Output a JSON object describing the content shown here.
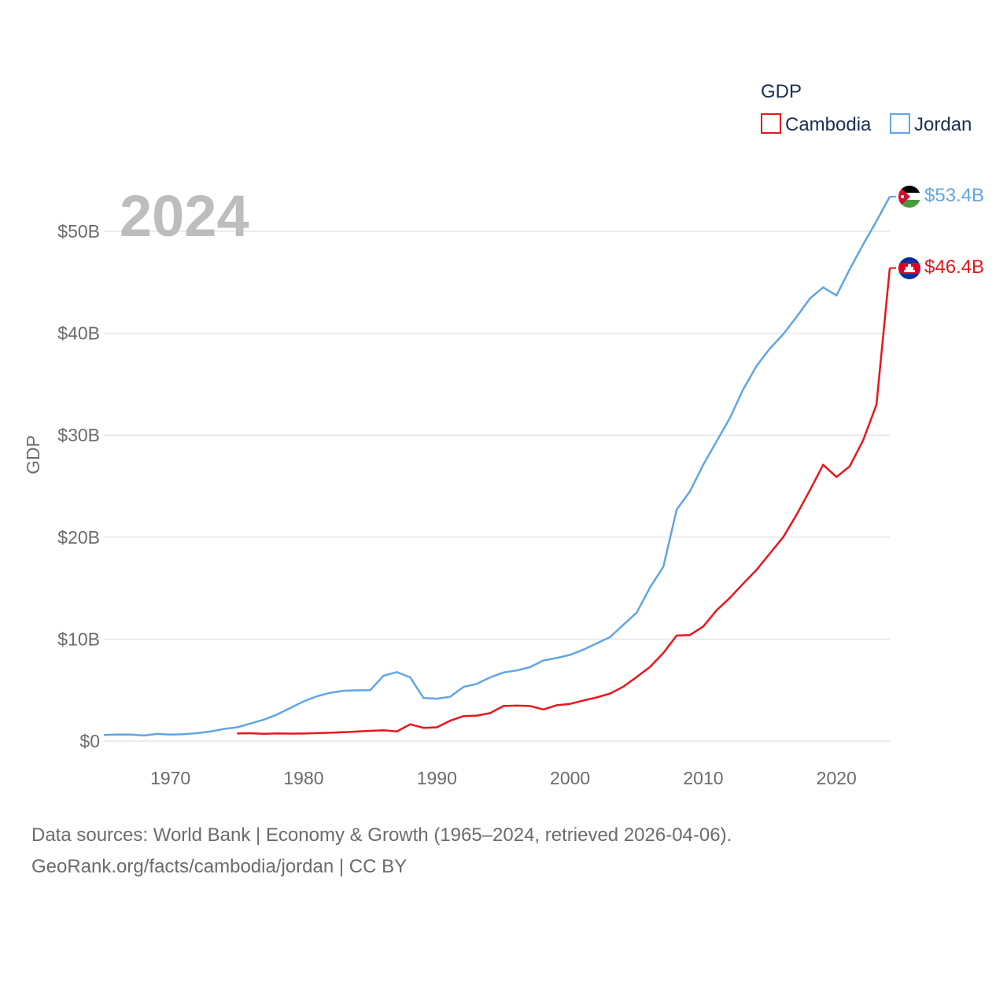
{
  "chart_data": {
    "type": "line",
    "year_label": "2024",
    "ylabel": "GDP",
    "legend_title": "GDP",
    "legend_position": "top-right",
    "xlim": [
      1965,
      2024
    ],
    "ylim": [
      0,
      55
    ],
    "y_ticks": [
      {
        "value": 0,
        "label": "$0"
      },
      {
        "value": 10,
        "label": "$10B"
      },
      {
        "value": 20,
        "label": "$20B"
      },
      {
        "value": 30,
        "label": "$30B"
      },
      {
        "value": 40,
        "label": "$40B"
      },
      {
        "value": 50,
        "label": "$50B"
      }
    ],
    "x_ticks": [
      {
        "value": 1970,
        "label": "1970"
      },
      {
        "value": 1980,
        "label": "1980"
      },
      {
        "value": 1990,
        "label": "1990"
      },
      {
        "value": 2000,
        "label": "2000"
      },
      {
        "value": 2010,
        "label": "2010"
      },
      {
        "value": 2020,
        "label": "2020"
      }
    ],
    "series": [
      {
        "name": "Cambodia",
        "color": "#e8161b",
        "end_label": "$46.4B",
        "flag": "cambodia-flag",
        "x": [
          1975,
          1976,
          1977,
          1978,
          1979,
          1980,
          1981,
          1982,
          1983,
          1984,
          1985,
          1986,
          1987,
          1988,
          1989,
          1990,
          1991,
          1992,
          1993,
          1994,
          1995,
          1996,
          1997,
          1998,
          1999,
          2000,
          2001,
          2002,
          2003,
          2004,
          2005,
          2006,
          2007,
          2008,
          2009,
          2010,
          2011,
          2012,
          2013,
          2014,
          2015,
          2016,
          2017,
          2018,
          2019,
          2020,
          2021,
          2022,
          2023,
          2024
        ],
        "values": [
          0.75,
          0.77,
          0.72,
          0.75,
          0.73,
          0.74,
          0.78,
          0.82,
          0.87,
          0.93,
          1.0,
          1.06,
          0.95,
          1.64,
          1.3,
          1.35,
          2.0,
          2.45,
          2.5,
          2.75,
          3.44,
          3.48,
          3.44,
          3.1,
          3.52,
          3.65,
          3.98,
          4.28,
          4.66,
          5.34,
          6.29,
          7.27,
          8.64,
          10.35,
          10.4,
          11.24,
          12.83,
          14.05,
          15.45,
          16.8,
          18.4,
          20.0,
          22.2,
          24.6,
          27.1,
          25.9,
          26.96,
          29.5,
          33.0,
          46.4
        ]
      },
      {
        "name": "Jordan",
        "color": "#62a5e4",
        "end_label": "$53.4B",
        "flag": "jordan-flag",
        "x": [
          1965,
          1966,
          1967,
          1968,
          1969,
          1970,
          1971,
          1972,
          1973,
          1974,
          1975,
          1976,
          1977,
          1978,
          1979,
          1980,
          1981,
          1982,
          1983,
          1984,
          1985,
          1986,
          1987,
          1988,
          1989,
          1990,
          1991,
          1992,
          1993,
          1994,
          1995,
          1996,
          1997,
          1998,
          1999,
          2000,
          2001,
          2002,
          2003,
          2004,
          2005,
          2006,
          2007,
          2008,
          2009,
          2010,
          2011,
          2012,
          2013,
          2014,
          2015,
          2016,
          2017,
          2018,
          2019,
          2020,
          2021,
          2022,
          2023,
          2024
        ],
        "values": [
          0.6,
          0.65,
          0.63,
          0.55,
          0.7,
          0.64,
          0.67,
          0.78,
          0.94,
          1.19,
          1.35,
          1.72,
          2.1,
          2.6,
          3.25,
          3.9,
          4.4,
          4.74,
          4.94,
          4.98,
          4.99,
          6.42,
          6.77,
          6.25,
          4.22,
          4.16,
          4.35,
          5.32,
          5.61,
          6.25,
          6.73,
          6.93,
          7.25,
          7.91,
          8.15,
          8.46,
          8.97,
          9.58,
          10.19,
          11.41,
          12.59,
          15.06,
          17.11,
          22.7,
          24.5,
          27.1,
          29.4,
          31.7,
          34.5,
          36.8,
          38.5,
          39.9,
          41.6,
          43.4,
          44.5,
          43.7,
          46.3,
          48.7,
          51.0,
          53.4
        ]
      }
    ]
  },
  "footer": {
    "line1": "Data sources: World Bank | Economy & Growth (1965–2024, retrieved 2026-04-06).",
    "line2": "GeoRank.org/facts/cambodia/jordan | CC BY"
  }
}
